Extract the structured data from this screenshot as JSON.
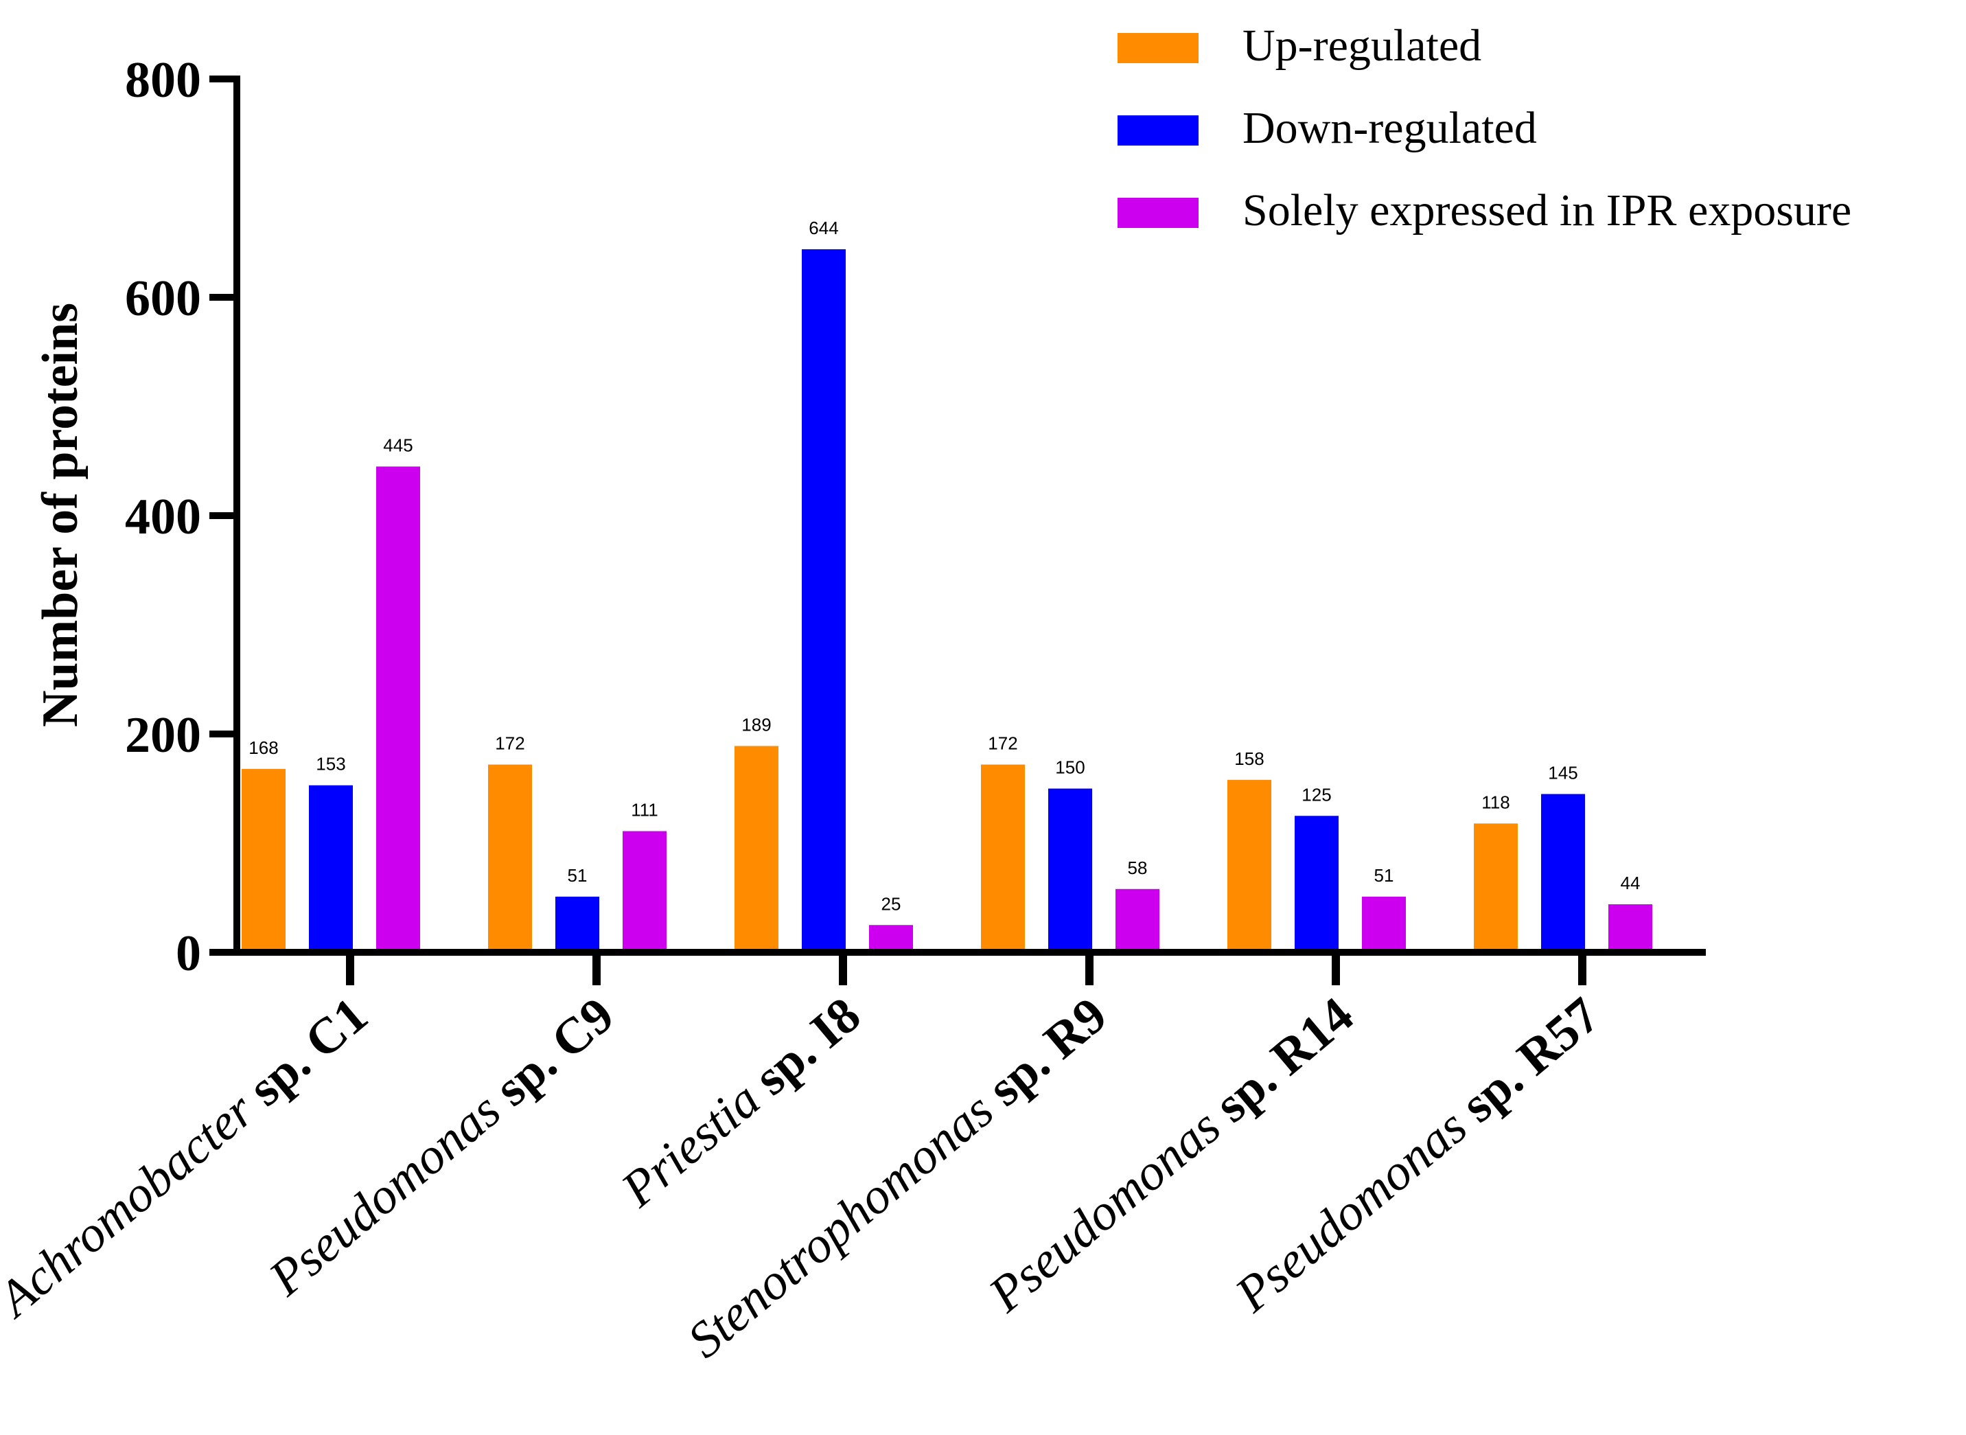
{
  "chart_data": {
    "type": "bar",
    "title": "",
    "xlabel": "",
    "ylabel": "Number of proteins",
    "ylim": [
      0,
      800
    ],
    "yticks": [
      0,
      200,
      400,
      600,
      800
    ],
    "grid": false,
    "legend_position": "top-right",
    "categories": [
      {
        "italic": "Achromobacter",
        "bold": "sp. C1"
      },
      {
        "italic": "Pseudomonas",
        "bold": "sp. C9"
      },
      {
        "italic": "Priestia",
        "bold": "sp. I8"
      },
      {
        "italic": "Stenotrophomonas",
        "bold": "sp. R9"
      },
      {
        "italic": "Pseudomonas",
        "bold": "sp. R14"
      },
      {
        "italic": "Pseudomonas",
        "bold": "sp. R57"
      }
    ],
    "series": [
      {
        "name": "Up-regulated",
        "color": "#FF8C00",
        "values": [
          168,
          172,
          189,
          172,
          158,
          118
        ]
      },
      {
        "name": "Down-regulated",
        "color": "#0000FF",
        "values": [
          153,
          51,
          644,
          150,
          125,
          145
        ]
      },
      {
        "name": "Solely expressed in IPR exposure",
        "color": "#CC00EE",
        "values": [
          445,
          111,
          25,
          58,
          51,
          44
        ]
      }
    ]
  }
}
